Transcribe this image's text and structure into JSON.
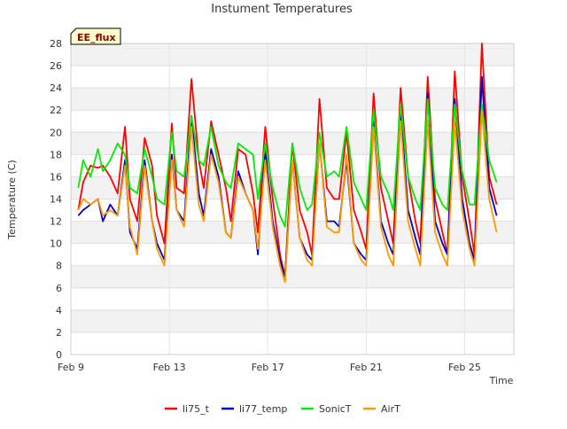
{
  "chart_data": {
    "type": "line",
    "title": "Instument Temperatures",
    "xlabel": "Time",
    "ylabel": "Temperature (C)",
    "badge": "EE_flux",
    "x_ticks": [
      "Feb 9",
      "Feb 13",
      "Feb 17",
      "Feb 21",
      "Feb 25"
    ],
    "x_tick_days": [
      9,
      13,
      17,
      21,
      25
    ],
    "xlim": [
      9,
      27
    ],
    "ylim": [
      0,
      28
    ],
    "y_ticks": [
      0,
      2,
      4,
      6,
      8,
      10,
      12,
      14,
      16,
      18,
      20,
      22,
      24,
      26,
      28
    ],
    "grid": true,
    "legend_position": "bottom",
    "x": [
      9.3,
      9.5,
      9.8,
      10.1,
      10.3,
      10.6,
      10.9,
      11.2,
      11.4,
      11.7,
      12.0,
      12.3,
      12.5,
      12.8,
      13.1,
      13.3,
      13.6,
      13.9,
      14.2,
      14.4,
      14.7,
      15.0,
      15.3,
      15.5,
      15.8,
      16.1,
      16.4,
      16.6,
      16.9,
      17.2,
      17.5,
      17.7,
      18.0,
      18.3,
      18.6,
      18.8,
      19.1,
      19.4,
      19.7,
      19.9,
      20.2,
      20.5,
      20.8,
      21.0,
      21.3,
      21.6,
      21.9,
      22.1,
      22.4,
      22.7,
      23.0,
      23.2,
      23.5,
      23.8,
      24.1,
      24.3,
      24.6,
      24.9,
      25.2,
      25.4,
      25.7,
      26.0,
      26.3
    ],
    "series": [
      {
        "name": "li75_t",
        "color": "#ff0000",
        "values": [
          13.0,
          15.5,
          17.0,
          16.8,
          17.0,
          16.0,
          14.5,
          20.5,
          14.0,
          12.0,
          19.5,
          17.0,
          12.5,
          10.0,
          20.8,
          15.0,
          14.5,
          24.8,
          17.5,
          15.0,
          21.0,
          18.0,
          15.0,
          12.0,
          18.5,
          18.0,
          14.5,
          11.0,
          20.5,
          14.0,
          9.0,
          7.0,
          19.0,
          13.0,
          11.0,
          9.0,
          23.0,
          15.0,
          14.0,
          14.0,
          20.0,
          13.0,
          11.0,
          9.5,
          23.5,
          15.0,
          12.0,
          10.0,
          24.0,
          16.0,
          12.0,
          10.0,
          25.0,
          14.0,
          11.0,
          9.0,
          25.5,
          16.0,
          12.0,
          9.0,
          28.0,
          16.0,
          13.5
        ]
      },
      {
        "name": "li77_temp",
        "color": "#0000cc",
        "values": [
          12.5,
          13.0,
          13.5,
          14.0,
          12.0,
          13.5,
          12.5,
          17.5,
          11.0,
          9.5,
          17.5,
          12.0,
          10.0,
          8.5,
          18.0,
          13.0,
          12.0,
          21.5,
          14.5,
          12.5,
          18.5,
          16.0,
          11.0,
          10.5,
          16.5,
          14.5,
          13.0,
          9.0,
          18.5,
          12.0,
          8.5,
          7.0,
          17.5,
          10.5,
          9.0,
          8.5,
          19.0,
          12.0,
          12.0,
          11.5,
          17.5,
          10.0,
          9.0,
          8.5,
          21.0,
          12.0,
          10.0,
          9.0,
          22.0,
          13.0,
          10.5,
          9.0,
          23.5,
          12.0,
          10.0,
          9.0,
          23.0,
          14.0,
          10.0,
          8.5,
          25.0,
          15.0,
          12.5
        ]
      },
      {
        "name": "SonicT",
        "color": "#00ee00",
        "values": [
          15.0,
          17.5,
          16.0,
          18.5,
          16.5,
          17.5,
          19.0,
          18.0,
          15.0,
          14.5,
          18.5,
          16.0,
          14.0,
          13.5,
          20.0,
          16.5,
          16.0,
          21.5,
          17.5,
          17.0,
          20.5,
          17.0,
          15.5,
          15.0,
          19.0,
          18.5,
          18.0,
          14.0,
          19.0,
          15.0,
          12.5,
          11.5,
          19.0,
          15.0,
          13.0,
          13.5,
          20.0,
          16.0,
          16.5,
          16.0,
          20.5,
          15.5,
          14.0,
          13.0,
          22.0,
          16.0,
          14.5,
          13.0,
          22.5,
          16.0,
          14.0,
          13.0,
          23.0,
          15.0,
          13.5,
          13.0,
          22.5,
          16.5,
          13.5,
          13.5,
          22.5,
          17.5,
          15.5
        ]
      },
      {
        "name": "AirT",
        "color": "#ff9900",
        "values": [
          13.0,
          14.0,
          13.5,
          14.0,
          12.5,
          13.0,
          12.5,
          17.0,
          11.5,
          9.0,
          17.0,
          12.0,
          9.5,
          8.0,
          17.5,
          13.0,
          11.5,
          20.5,
          13.5,
          12.0,
          18.0,
          15.5,
          11.0,
          10.5,
          16.0,
          14.5,
          13.0,
          9.5,
          17.5,
          11.5,
          8.0,
          6.5,
          17.5,
          10.5,
          8.5,
          8.0,
          19.0,
          11.5,
          11.0,
          11.0,
          18.0,
          10.0,
          8.5,
          8.0,
          20.5,
          11.5,
          9.0,
          8.0,
          21.0,
          12.0,
          9.5,
          8.0,
          21.0,
          11.0,
          9.0,
          8.0,
          21.0,
          13.0,
          9.5,
          8.0,
          22.0,
          14.0,
          11.0
        ]
      }
    ]
  }
}
